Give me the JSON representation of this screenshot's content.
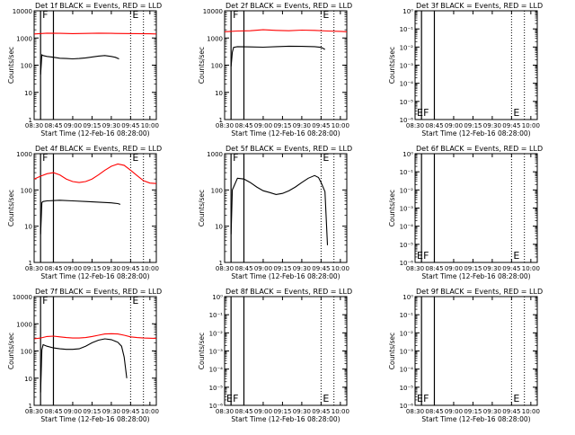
{
  "figure": {
    "xlabel": "Start Time (12-Feb-16 08:28:00)",
    "ylabel": "Counts/sec",
    "xticks": [
      "08:30",
      "08:45",
      "09:00",
      "09:15",
      "09:30",
      "09:45",
      "10:00"
    ],
    "log_yticks": [
      "1",
      "10",
      "100",
      "1000",
      "10000"
    ],
    "small_yticks": [
      "10⁰",
      "10⁻¹",
      "10⁻²",
      "10⁻³",
      "10⁻⁴",
      "10⁻⁵",
      "10⁻⁶"
    ],
    "colors": {
      "events": "#000000",
      "lld": "#ff0000",
      "axes": "#000000"
    }
  },
  "chart_data": [
    {
      "title": "Det 1f BLACK = Events, RED = LLD",
      "type": "line",
      "x_unit": "minutes after 08:30",
      "xlim": [
        0,
        95
      ],
      "ylim": [
        1,
        10000
      ],
      "yscale": "log",
      "markers": [
        {
          "label": "F",
          "x": 5
        },
        {
          "label": "E",
          "x": 75
        }
      ],
      "series": [
        {
          "name": "BLACK = Events",
          "color": "#000000",
          "x": [
            5,
            6,
            7,
            10,
            15,
            20,
            25,
            30,
            35,
            40,
            45,
            50,
            55,
            60,
            63,
            66
          ],
          "y": [
            45,
            240,
            225,
            210,
            195,
            180,
            175,
            170,
            175,
            185,
            200,
            215,
            225,
            210,
            195,
            170
          ]
        },
        {
          "name": "RED = LLD",
          "color": "#ff0000",
          "x": [
            0,
            10,
            20,
            30,
            40,
            50,
            60,
            70,
            80,
            90,
            95
          ],
          "y": [
            1400,
            1500,
            1480,
            1450,
            1470,
            1500,
            1480,
            1460,
            1450,
            1420,
            1400
          ]
        }
      ]
    },
    {
      "title": "Det 2f BLACK = Events, RED = LLD",
      "type": "line",
      "x_unit": "minutes after 08:30",
      "xlim": [
        0,
        95
      ],
      "ylim": [
        1,
        10000
      ],
      "yscale": "log",
      "markers": [
        {
          "label": "F",
          "x": 5
        },
        {
          "label": "E",
          "x": 75
        }
      ],
      "series": [
        {
          "name": "BLACK = Events",
          "color": "#000000",
          "x": [
            5,
            6,
            7,
            10,
            20,
            30,
            40,
            50,
            60,
            70,
            75,
            78
          ],
          "y": [
            90,
            300,
            450,
            480,
            470,
            460,
            480,
            500,
            490,
            480,
            450,
            380
          ]
        },
        {
          "name": "RED = LLD",
          "color": "#ff0000",
          "x": [
            0,
            10,
            20,
            30,
            40,
            50,
            60,
            70,
            80,
            90,
            95
          ],
          "y": [
            1700,
            1800,
            1850,
            2000,
            1900,
            1850,
            1950,
            1900,
            1800,
            1750,
            1700
          ]
        }
      ]
    },
    {
      "title": "Det 3f BLACK = Events, RED = LLD",
      "type": "line",
      "x_unit": "minutes after 08:30",
      "xlim": [
        0,
        95
      ],
      "ylim": [
        1e-06,
        1
      ],
      "yscale": "log",
      "markers": [
        {
          "label": "F",
          "x": 5
        },
        {
          "label": "E",
          "x": 75
        }
      ],
      "series": []
    },
    {
      "title": "Det 4f BLACK = Events, RED = LLD",
      "type": "line",
      "x_unit": "minutes after 08:30",
      "xlim": [
        0,
        95
      ],
      "ylim": [
        1,
        1000
      ],
      "yscale": "log",
      "markers": [
        {
          "label": "F",
          "x": 5
        },
        {
          "label": "E",
          "x": 75
        }
      ],
      "series": [
        {
          "name": "BLACK = Events",
          "color": "#000000",
          "x": [
            5,
            6,
            7,
            10,
            20,
            30,
            40,
            50,
            60,
            65,
            67
          ],
          "y": [
            6,
            45,
            48,
            50,
            52,
            50,
            48,
            46,
            44,
            42,
            40
          ]
        },
        {
          "name": "RED = LLD",
          "color": "#ff0000",
          "x": [
            0,
            5,
            10,
            15,
            20,
            25,
            30,
            35,
            40,
            45,
            50,
            55,
            60,
            65,
            70,
            75,
            80,
            85,
            90,
            95
          ],
          "y": [
            200,
            240,
            280,
            300,
            260,
            200,
            170,
            160,
            170,
            200,
            260,
            350,
            450,
            520,
            480,
            350,
            250,
            180,
            155,
            150
          ]
        }
      ]
    },
    {
      "title": "Det 5f BLACK = Events, RED = LLD",
      "type": "line",
      "x_unit": "minutes after 08:30",
      "xlim": [
        0,
        95
      ],
      "ylim": [
        1,
        1000
      ],
      "yscale": "log",
      "markers": [
        {
          "label": "F",
          "x": 5
        },
        {
          "label": "E",
          "x": 75
        }
      ],
      "series": [
        {
          "name": "BLACK = Events",
          "color": "#000000",
          "x": [
            5,
            6,
            7,
            10,
            15,
            20,
            25,
            30,
            35,
            40,
            45,
            50,
            55,
            60,
            65,
            70,
            73,
            75,
            78,
            80
          ],
          "y": [
            6,
            100,
            120,
            210,
            200,
            160,
            120,
            95,
            85,
            75,
            80,
            95,
            120,
            160,
            210,
            250,
            220,
            160,
            90,
            3
          ]
        }
      ]
    },
    {
      "title": "Det 6f BLACK = Events, RED = LLD",
      "type": "line",
      "x_unit": "minutes after 08:30",
      "xlim": [
        0,
        95
      ],
      "ylim": [
        1e-06,
        1
      ],
      "yscale": "log",
      "markers": [
        {
          "label": "F",
          "x": 5
        },
        {
          "label": "E",
          "x": 75
        }
      ],
      "series": []
    },
    {
      "title": "Det 7f BLACK = Events, RED = LLD",
      "type": "line",
      "x_unit": "minutes after 08:30",
      "xlim": [
        0,
        95
      ],
      "ylim": [
        1,
        10000
      ],
      "yscale": "log",
      "markers": [
        {
          "label": "F",
          "x": 5
        },
        {
          "label": "E",
          "x": 75
        }
      ],
      "series": [
        {
          "name": "BLACK = Events",
          "color": "#000000",
          "x": [
            5,
            6,
            7,
            10,
            15,
            20,
            25,
            30,
            35,
            40,
            45,
            50,
            55,
            60,
            65,
            68,
            70,
            72
          ],
          "y": [
            3,
            110,
            170,
            150,
            130,
            120,
            115,
            115,
            120,
            150,
            200,
            250,
            280,
            260,
            210,
            150,
            60,
            10
          ]
        },
        {
          "name": "RED = LLD",
          "color": "#ff0000",
          "x": [
            0,
            5,
            10,
            15,
            20,
            25,
            30,
            35,
            40,
            45,
            50,
            55,
            60,
            65,
            70,
            75,
            80,
            85,
            90,
            95
          ],
          "y": [
            280,
            300,
            340,
            350,
            330,
            310,
            300,
            300,
            310,
            340,
            380,
            420,
            430,
            420,
            380,
            330,
            310,
            300,
            295,
            290
          ]
        }
      ]
    },
    {
      "title": "Det 8f BLACK = Events, RED = LLD",
      "type": "line",
      "x_unit": "minutes after 08:30",
      "xlim": [
        0,
        95
      ],
      "ylim": [
        1e-06,
        1
      ],
      "yscale": "log",
      "markers": [
        {
          "label": "F",
          "x": 5
        },
        {
          "label": "E",
          "x": 75
        }
      ],
      "series": []
    },
    {
      "title": "Det 9f BLACK = Events, RED = LLD",
      "type": "line",
      "x_unit": "minutes after 08:30",
      "xlim": [
        0,
        95
      ],
      "ylim": [
        1e-06,
        1
      ],
      "yscale": "log",
      "markers": [
        {
          "label": "F",
          "x": 5
        },
        {
          "label": "E",
          "x": 75
        }
      ],
      "series": []
    }
  ]
}
